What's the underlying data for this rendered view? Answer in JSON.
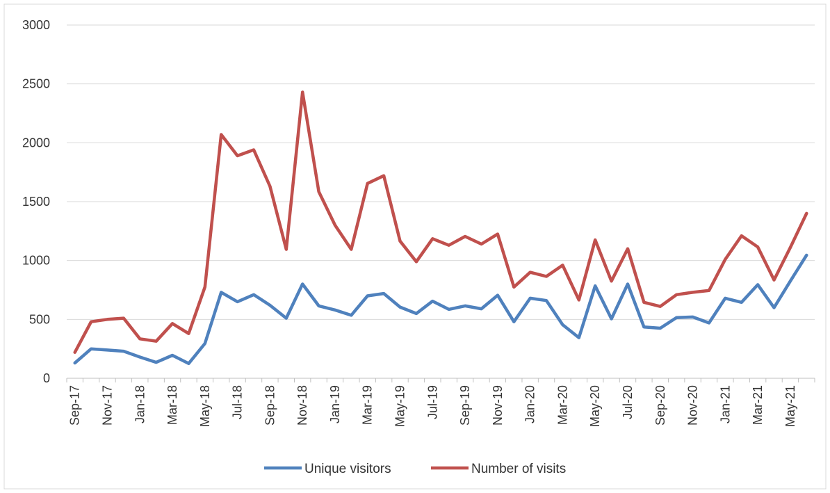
{
  "chart_data": {
    "type": "line",
    "title": "",
    "xlabel": "",
    "ylabel": "",
    "ylim": [
      0,
      3000
    ],
    "yticks": [
      0,
      500,
      1000,
      1500,
      2000,
      2500,
      3000
    ],
    "grid": "horizontal",
    "legend_position": "bottom",
    "x": [
      "Sep-17",
      "Oct-17",
      "Nov-17",
      "Dec-17",
      "Jan-18",
      "Feb-18",
      "Mar-18",
      "Apr-18",
      "May-18",
      "Jun-18",
      "Jul-18",
      "Aug-18",
      "Sep-18",
      "Oct-18",
      "Nov-18",
      "Dec-18",
      "Jan-19",
      "Feb-19",
      "Mar-19",
      "Apr-19",
      "May-19",
      "Jun-19",
      "Jul-19",
      "Aug-19",
      "Sep-19",
      "Oct-19",
      "Nov-19",
      "Dec-19",
      "Jan-20",
      "Feb-20",
      "Mar-20",
      "Apr-20",
      "May-20",
      "Jun-20",
      "Jul-20",
      "Aug-20",
      "Sep-20",
      "Oct-20",
      "Nov-20",
      "Dec-20",
      "Jan-21",
      "Feb-21",
      "Mar-21",
      "Apr-21",
      "May-21",
      "Jun-21"
    ],
    "x_tick_labels": [
      "Sep-17",
      "Nov-17",
      "Jan-18",
      "Mar-18",
      "May-18",
      "Jul-18",
      "Sep-18",
      "Nov-18",
      "Jan-19",
      "Mar-19",
      "May-19",
      "Jul-19",
      "Sep-19",
      "Nov-19",
      "Jan-20",
      "Mar-20",
      "May-20",
      "Jul-20",
      "Sep-20",
      "Nov-20",
      "Jan-21",
      "Mar-21",
      "May-21"
    ],
    "series": [
      {
        "name": "Unique visitors",
        "color": "#4f81bd",
        "values": [
          130,
          250,
          240,
          230,
          180,
          135,
          195,
          125,
          295,
          730,
          650,
          710,
          620,
          510,
          800,
          615,
          580,
          535,
          700,
          720,
          605,
          550,
          655,
          585,
          615,
          590,
          705,
          480,
          680,
          660,
          455,
          345,
          785,
          505,
          800,
          435,
          425,
          515,
          520,
          470,
          680,
          645,
          795,
          600,
          825,
          1045
        ]
      },
      {
        "name": "Number of visits",
        "color": "#c0504d",
        "values": [
          220,
          480,
          500,
          510,
          335,
          315,
          465,
          380,
          775,
          2070,
          1890,
          1940,
          1630,
          1095,
          2430,
          1585,
          1300,
          1095,
          1655,
          1720,
          1165,
          990,
          1185,
          1130,
          1205,
          1140,
          1225,
          775,
          900,
          865,
          960,
          665,
          1175,
          825,
          1100,
          645,
          610,
          710,
          730,
          745,
          1010,
          1210,
          1115,
          835,
          1110,
          1400
        ]
      }
    ]
  }
}
